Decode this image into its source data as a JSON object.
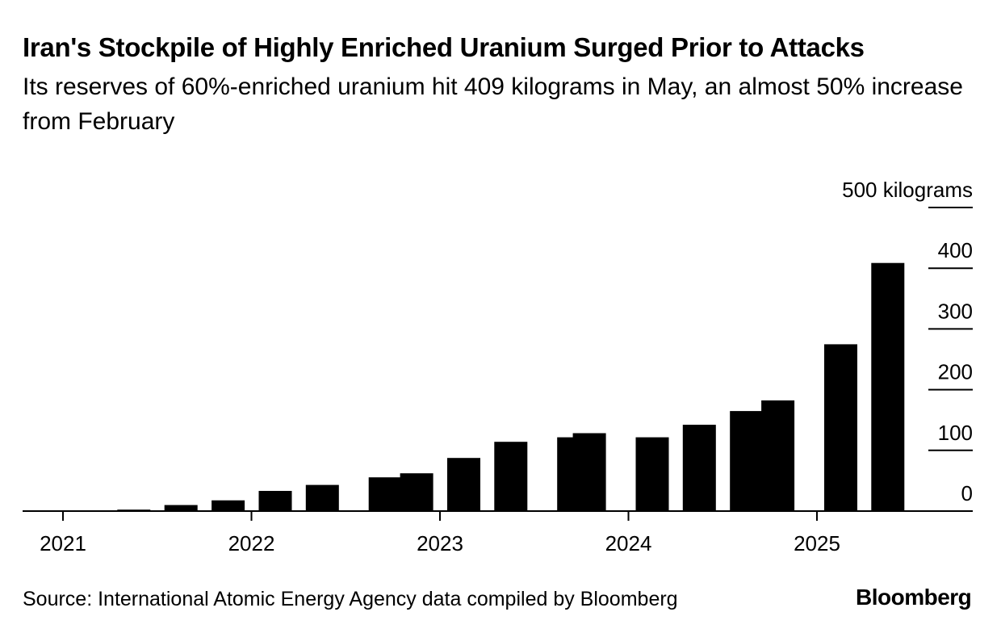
{
  "header": {
    "title": "Iran's Stockpile of Highly Enriched Uranium Surged Prior to Attacks",
    "subtitle": "Its reserves of 60%-enriched uranium hit 409 kilograms in May, an almost 50% increase from February"
  },
  "footer": {
    "source": "Source: International Atomic Energy Agency data compiled by Bloomberg",
    "logo": "Bloomberg"
  },
  "chart_data": {
    "type": "bar",
    "title": "Iran's Stockpile of Highly Enriched Uranium Surged Prior to Attacks",
    "subtitle": "Its reserves of 60%-enriched uranium hit 409 kilograms in May, an almost 50% increase from February",
    "ylabel_unit": "kilograms",
    "ylim": [
      0,
      500
    ],
    "y_ticks": [
      0,
      100,
      200,
      300,
      400,
      500
    ],
    "y_tick_labels": [
      "0",
      "100",
      "200",
      "300",
      "400",
      "500 kilograms"
    ],
    "y_axis_position": "right",
    "x_tick_labels": [
      "2021",
      "2022",
      "2023",
      "2024",
      "2025"
    ],
    "x_tick_years": [
      2021,
      2022,
      2023,
      2024,
      2025
    ],
    "x_range": [
      2021.0,
      2026.0
    ],
    "grid": false,
    "bar_color": "#000000",
    "bars": [
      {
        "date": "2021-05",
        "value": 2.4
      },
      {
        "date": "2021-08",
        "value": 10
      },
      {
        "date": "2021-11",
        "value": 17.7
      },
      {
        "date": "2022-02",
        "value": 33.2
      },
      {
        "date": "2022-05",
        "value": 43.1
      },
      {
        "date": "2022-09",
        "value": 55.6
      },
      {
        "date": "2022-11",
        "value": 62.3
      },
      {
        "date": "2023-02",
        "value": 87.5
      },
      {
        "date": "2023-05",
        "value": 114.1
      },
      {
        "date": "2023-09",
        "value": 121.6
      },
      {
        "date": "2023-10",
        "value": 128.3
      },
      {
        "date": "2024-02",
        "value": 121.5
      },
      {
        "date": "2024-05",
        "value": 142.1
      },
      {
        "date": "2024-08",
        "value": 164.7
      },
      {
        "date": "2024-10",
        "value": 182.3
      },
      {
        "date": "2025-02",
        "value": 274.8
      },
      {
        "date": "2025-05",
        "value": 408.6
      }
    ]
  }
}
